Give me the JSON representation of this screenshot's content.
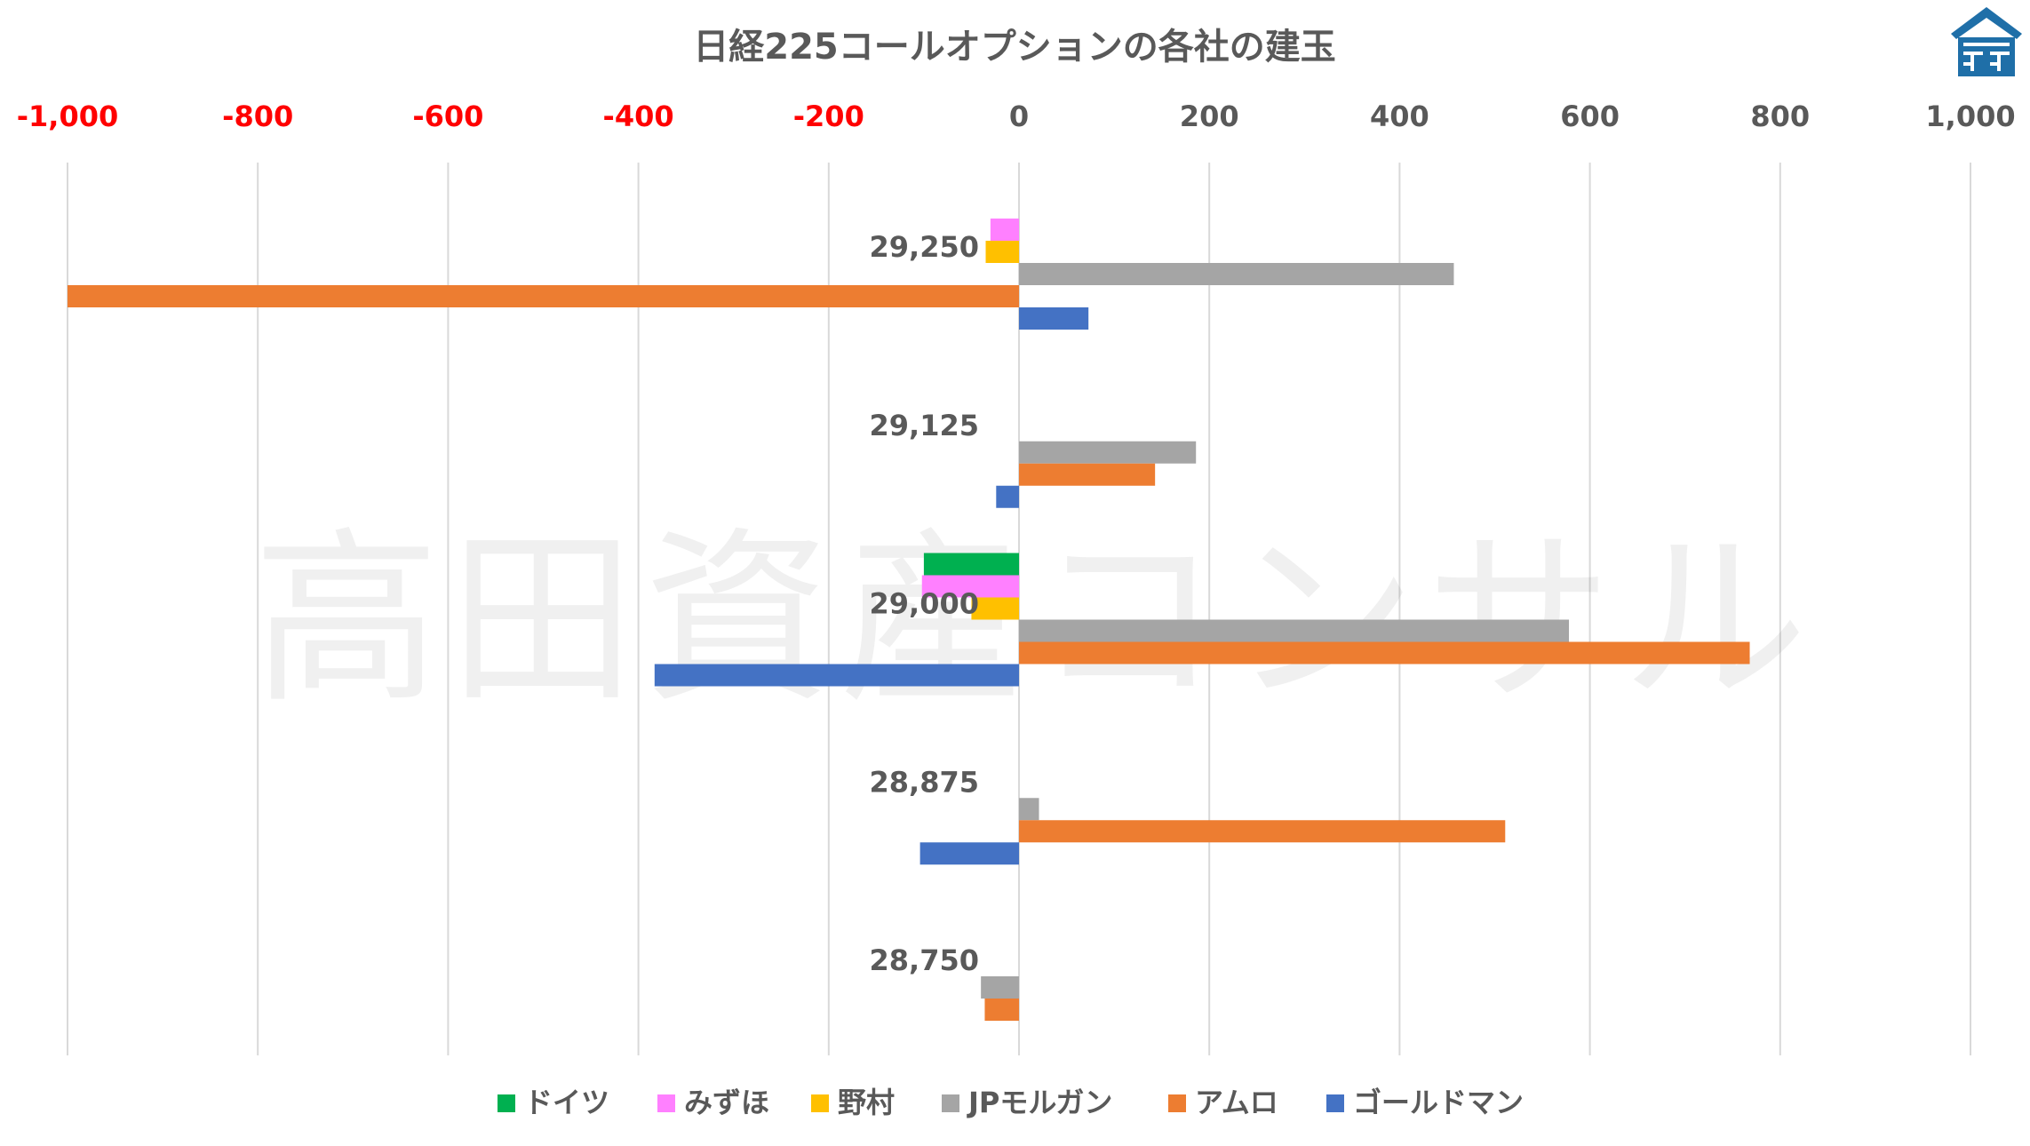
{
  "chart_data": {
    "type": "bar",
    "orientation": "horizontal",
    "title": "日経225コールオプションの各社の建玉",
    "watermark": "高田資産コンサル",
    "xlim": [
      -1000,
      1000
    ],
    "x_ticks": [
      -1000,
      -800,
      -600,
      -400,
      -200,
      0,
      200,
      400,
      600,
      800,
      1000
    ],
    "x_tick_labels": [
      "-1,000",
      "-800",
      "-600",
      "-400",
      "-200",
      "0",
      "200",
      "400",
      "600",
      "800",
      "1,000"
    ],
    "negative_tick_color": "#ff0000",
    "tick_color": "#595959",
    "grid": true,
    "legend_position": "bottom",
    "categories": [
      "29,250",
      "29,125",
      "29,000",
      "28,875",
      "28,750"
    ],
    "series": [
      {
        "name": "ドイツ",
        "color": "#00b050",
        "values": [
          0,
          0,
          -100,
          0,
          0
        ]
      },
      {
        "name": "みずほ",
        "color": "#ff80ff",
        "values": [
          -30,
          0,
          -102,
          0,
          0
        ]
      },
      {
        "name": "野村",
        "color": "#ffc000",
        "values": [
          -35,
          0,
          -50,
          0,
          0
        ]
      },
      {
        "name": "JPモルガン",
        "color": "#a5a5a5",
        "values": [
          457,
          186,
          578,
          21,
          -40
        ]
      },
      {
        "name": "アムロ",
        "color": "#ed7d31",
        "values": [
          -1000,
          143,
          768,
          511,
          -36
        ]
      },
      {
        "name": "ゴールドマン",
        "color": "#4472c4",
        "values": [
          73,
          -24,
          -383,
          -104,
          0
        ]
      }
    ]
  },
  "logo": {
    "name": "logo-mark",
    "color": "#1f6fa8"
  }
}
